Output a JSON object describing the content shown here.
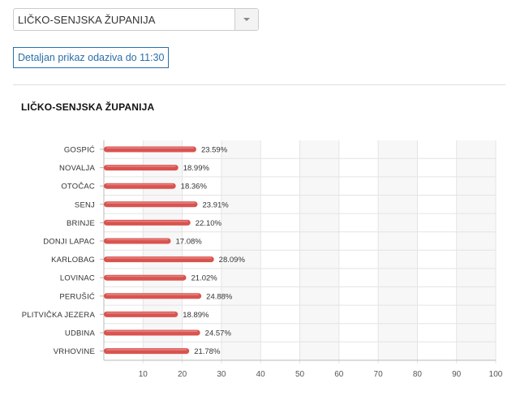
{
  "selector": {
    "value": "LIČKO-SENJSKA ŽUPANIJA"
  },
  "detail_button": {
    "label": "Detaljan prikaz odaziva do 11:30"
  },
  "chart_data": {
    "type": "bar",
    "orientation": "horizontal",
    "title": "LIČKO-SENJSKA ŽUPANIJA",
    "categories": [
      "GOSPIĆ",
      "NOVALJA",
      "OTOČAC",
      "SENJ",
      "BRINJE",
      "DONJI LAPAC",
      "KARLOBAG",
      "LOVINAC",
      "PERUŠIĆ",
      "PLITVIČKA JEZERA",
      "UDBINA",
      "VRHOVINE"
    ],
    "values": [
      23.59,
      18.99,
      18.36,
      23.91,
      22.1,
      17.08,
      28.09,
      21.02,
      24.88,
      18.89,
      24.57,
      21.78
    ],
    "data_labels": [
      "23.59%",
      "18.99%",
      "18.36%",
      "23.91%",
      "22.10%",
      "17.08%",
      "28.09%",
      "21.02%",
      "24.88%",
      "18.89%",
      "24.57%",
      "21.78%"
    ],
    "xlim": [
      0,
      100
    ],
    "xticks": [
      10,
      20,
      30,
      40,
      50,
      60,
      70,
      80,
      90,
      100
    ],
    "grid": true,
    "bar_color": "#d9534f"
  }
}
